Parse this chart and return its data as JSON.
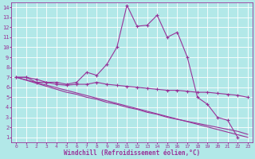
{
  "title": "",
  "xlabel": "Windchill (Refroidissement éolien,°C)",
  "bg_color": "#b2e8e8",
  "line_color": "#993399",
  "grid_color": "#ffffff",
  "xlim": [
    -0.5,
    23.5
  ],
  "ylim": [
    0.5,
    14.5
  ],
  "xticks": [
    0,
    1,
    2,
    3,
    4,
    5,
    6,
    7,
    8,
    9,
    10,
    11,
    12,
    13,
    14,
    15,
    16,
    17,
    18,
    19,
    20,
    21,
    22,
    23
  ],
  "yticks": [
    1,
    2,
    3,
    4,
    5,
    6,
    7,
    8,
    9,
    10,
    11,
    12,
    13,
    14
  ],
  "line1_x": [
    0,
    1,
    2,
    3,
    4,
    5,
    6,
    7,
    8,
    9,
    10,
    11,
    12,
    13,
    14,
    15,
    16,
    17,
    18,
    19,
    20,
    21,
    22
  ],
  "line1_y": [
    7.0,
    7.0,
    6.5,
    6.5,
    6.5,
    6.3,
    6.5,
    7.5,
    7.2,
    8.3,
    10.0,
    14.2,
    12.1,
    12.2,
    13.2,
    11.0,
    11.5,
    9.0,
    5.0,
    4.3,
    3.0,
    2.7,
    1.0
  ],
  "line2_x": [
    0,
    1,
    2,
    3,
    4,
    5,
    6,
    7,
    8,
    9,
    10,
    11,
    12,
    13,
    14,
    15,
    16,
    17,
    18,
    19,
    20,
    21,
    22,
    23
  ],
  "line2_y": [
    7.0,
    7.0,
    6.8,
    6.5,
    6.3,
    6.2,
    6.3,
    6.3,
    6.5,
    6.3,
    6.2,
    6.1,
    6.0,
    5.9,
    5.8,
    5.7,
    5.7,
    5.6,
    5.5,
    5.5,
    5.4,
    5.3,
    5.2,
    5.0
  ],
  "line3_x": [
    0,
    23
  ],
  "line3_y": [
    7.0,
    1.0
  ],
  "line4_x": [
    0,
    1,
    2,
    3,
    4,
    5,
    6,
    7,
    8,
    9,
    10,
    11,
    12,
    13,
    14,
    15,
    16,
    17,
    18,
    19,
    20,
    21,
    22,
    23
  ],
  "line4_y": [
    7.0,
    6.7,
    6.4,
    6.1,
    5.8,
    5.5,
    5.3,
    5.0,
    4.8,
    4.5,
    4.3,
    4.0,
    3.8,
    3.5,
    3.3,
    3.0,
    2.8,
    2.6,
    2.4,
    2.2,
    2.0,
    1.8,
    1.6,
    1.3
  ]
}
